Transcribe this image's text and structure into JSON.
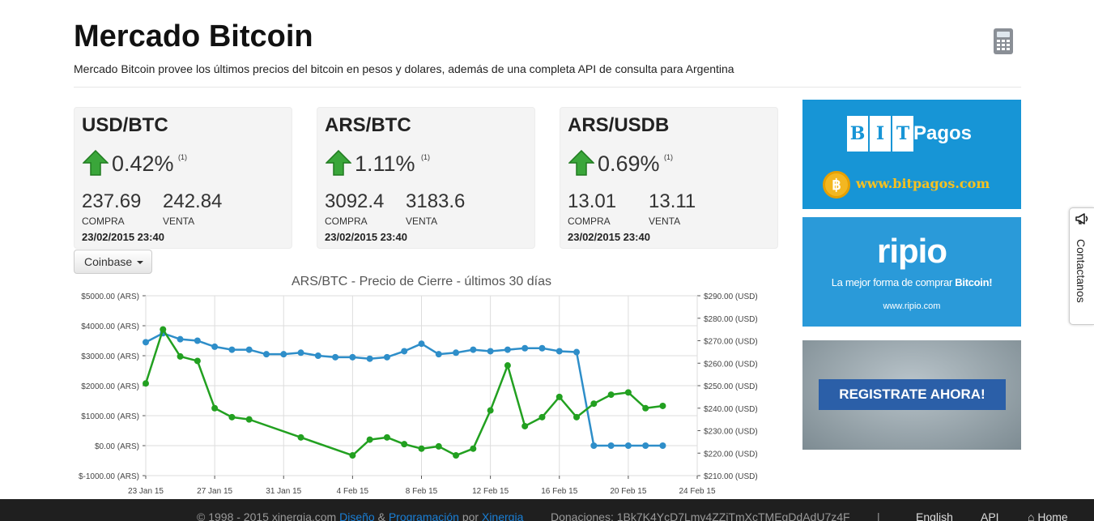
{
  "header": {
    "title": "Mercado Bitcoin",
    "subtitle": "Mercado Bitcoin provee los últimos precios del bitcoin en pesos y dolares, además de una completa API de consulta para Argentina",
    "calculator_icon": "calculator-icon"
  },
  "cards": [
    {
      "pair": "USD/BTC",
      "change": "0.42%",
      "note": "(1)",
      "buy": "237.69",
      "sell": "242.84",
      "buy_label": "COMPRA",
      "sell_label": "VENTA",
      "date": "23/02/2015 23:40",
      "direction": "up"
    },
    {
      "pair": "ARS/BTC",
      "change": "1.11%",
      "note": "(1)",
      "buy": "3092.4",
      "sell": "3183.6",
      "buy_label": "COMPRA",
      "sell_label": "VENTA",
      "date": "23/02/2015 23:40",
      "direction": "up"
    },
    {
      "pair": "ARS/USDB",
      "change": "0.69%",
      "note": "(1)",
      "buy": "13.01",
      "sell": "13.11",
      "buy_label": "COMPRA",
      "sell_label": "VENTA",
      "date": "23/02/2015 23:40",
      "direction": "up"
    }
  ],
  "exchange_dropdown": {
    "selected": "Coinbase"
  },
  "chart_data": {
    "type": "line",
    "title": "ARS/BTC - Precio de Cierre - últimos 30 días",
    "x": [
      "23 Jan 15",
      "24 Jan 15",
      "25 Jan 15",
      "26 Jan 15",
      "27 Jan 15",
      "28 Jan 15",
      "29 Jan 15",
      "30 Jan 15",
      "31 Jan 15",
      "1 Feb 15",
      "2 Feb 15",
      "3 Feb 15",
      "4 Feb 15",
      "5 Feb 15",
      "6 Feb 15",
      "7 Feb 15",
      "8 Feb 15",
      "9 Feb 15",
      "10 Feb 15",
      "11 Feb 15",
      "12 Feb 15",
      "13 Feb 15",
      "14 Feb 15",
      "15 Feb 15",
      "16 Feb 15",
      "17 Feb 15",
      "18 Feb 15",
      "19 Feb 15",
      "20 Feb 15",
      "21 Feb 15",
      "22 Feb 15"
    ],
    "x_ticks": [
      "23 Jan 15",
      "27 Jan 15",
      "31 Jan 15",
      "4 Feb 15",
      "8 Feb 15",
      "12 Feb 15",
      "16 Feb 15",
      "20 Feb 15",
      "24 Feb 15"
    ],
    "x_range": [
      "23 Jan 15",
      "24 Feb 15"
    ],
    "y_left": {
      "ticks": [
        "$5000.00 (ARS)",
        "$4000.00 (ARS)",
        "$3000.00 (ARS)",
        "$2000.00 (ARS)",
        "$1000.00 (ARS)",
        "$0.00 (ARS)",
        "$-1000.00 (ARS)"
      ],
      "ylim": [
        -1000,
        5000
      ]
    },
    "y_right": {
      "ticks": [
        "$290.00 (USD)",
        "$280.00 (USD)",
        "$270.00 (USD)",
        "$260.00 (USD)",
        "$250.00 (USD)",
        "$240.00 (USD)",
        "$230.00 (USD)",
        "$220.00 (USD)",
        "$210.00 (USD)"
      ],
      "ylim": [
        210,
        290
      ]
    },
    "grid": true,
    "series": [
      {
        "color": "#2e8ec9",
        "axis": "left",
        "values": [
          3450,
          3750,
          3550,
          3500,
          3300,
          3200,
          3200,
          3050,
          3050,
          3100,
          3000,
          2950,
          2950,
          2900,
          2950,
          3150,
          3400,
          3050,
          3100,
          3200,
          3150,
          3200,
          3250,
          3250,
          3150,
          3120,
          0,
          0,
          0,
          0,
          0
        ]
      },
      {
        "color": "#22a020",
        "axis": "right",
        "values": [
          251,
          275,
          263,
          261,
          240,
          236,
          235,
          null,
          null,
          227,
          null,
          null,
          219,
          226,
          227,
          224,
          222,
          223,
          219,
          222,
          239,
          259,
          232,
          236,
          245,
          236,
          242,
          246,
          247,
          240,
          241
        ]
      }
    ]
  },
  "ads": {
    "bitpagos": {
      "letters": [
        "B",
        "I",
        "T"
      ],
      "word": "Pagos",
      "url": "www.bitpagos.com",
      "coin": "฿"
    },
    "ripio": {
      "logo": "ripio",
      "tag_prefix": "La mejor forma de comprar ",
      "tag_bold": "Bitcoin!",
      "url": "www.ripio.com"
    },
    "register": {
      "button": "REGISTRATE AHORA!"
    }
  },
  "contact_tab": {
    "label": "Contactanos",
    "icon": "megaphone-icon"
  },
  "footer": {
    "copyright": "© 1998 - 2015 xinergia.com",
    "diseno": "Diseño",
    "amp": "&",
    "programacion": "Programación",
    "por": "por",
    "xinergia": "Xinergia",
    "donaciones": "Donaciones: 1Bk7K4YcD7Lmv4ZZiTmXcTMEgDdAdU7z4F",
    "separator": "|",
    "english": "English",
    "api": "API",
    "home": "Home",
    "home_icon": "home-icon"
  }
}
